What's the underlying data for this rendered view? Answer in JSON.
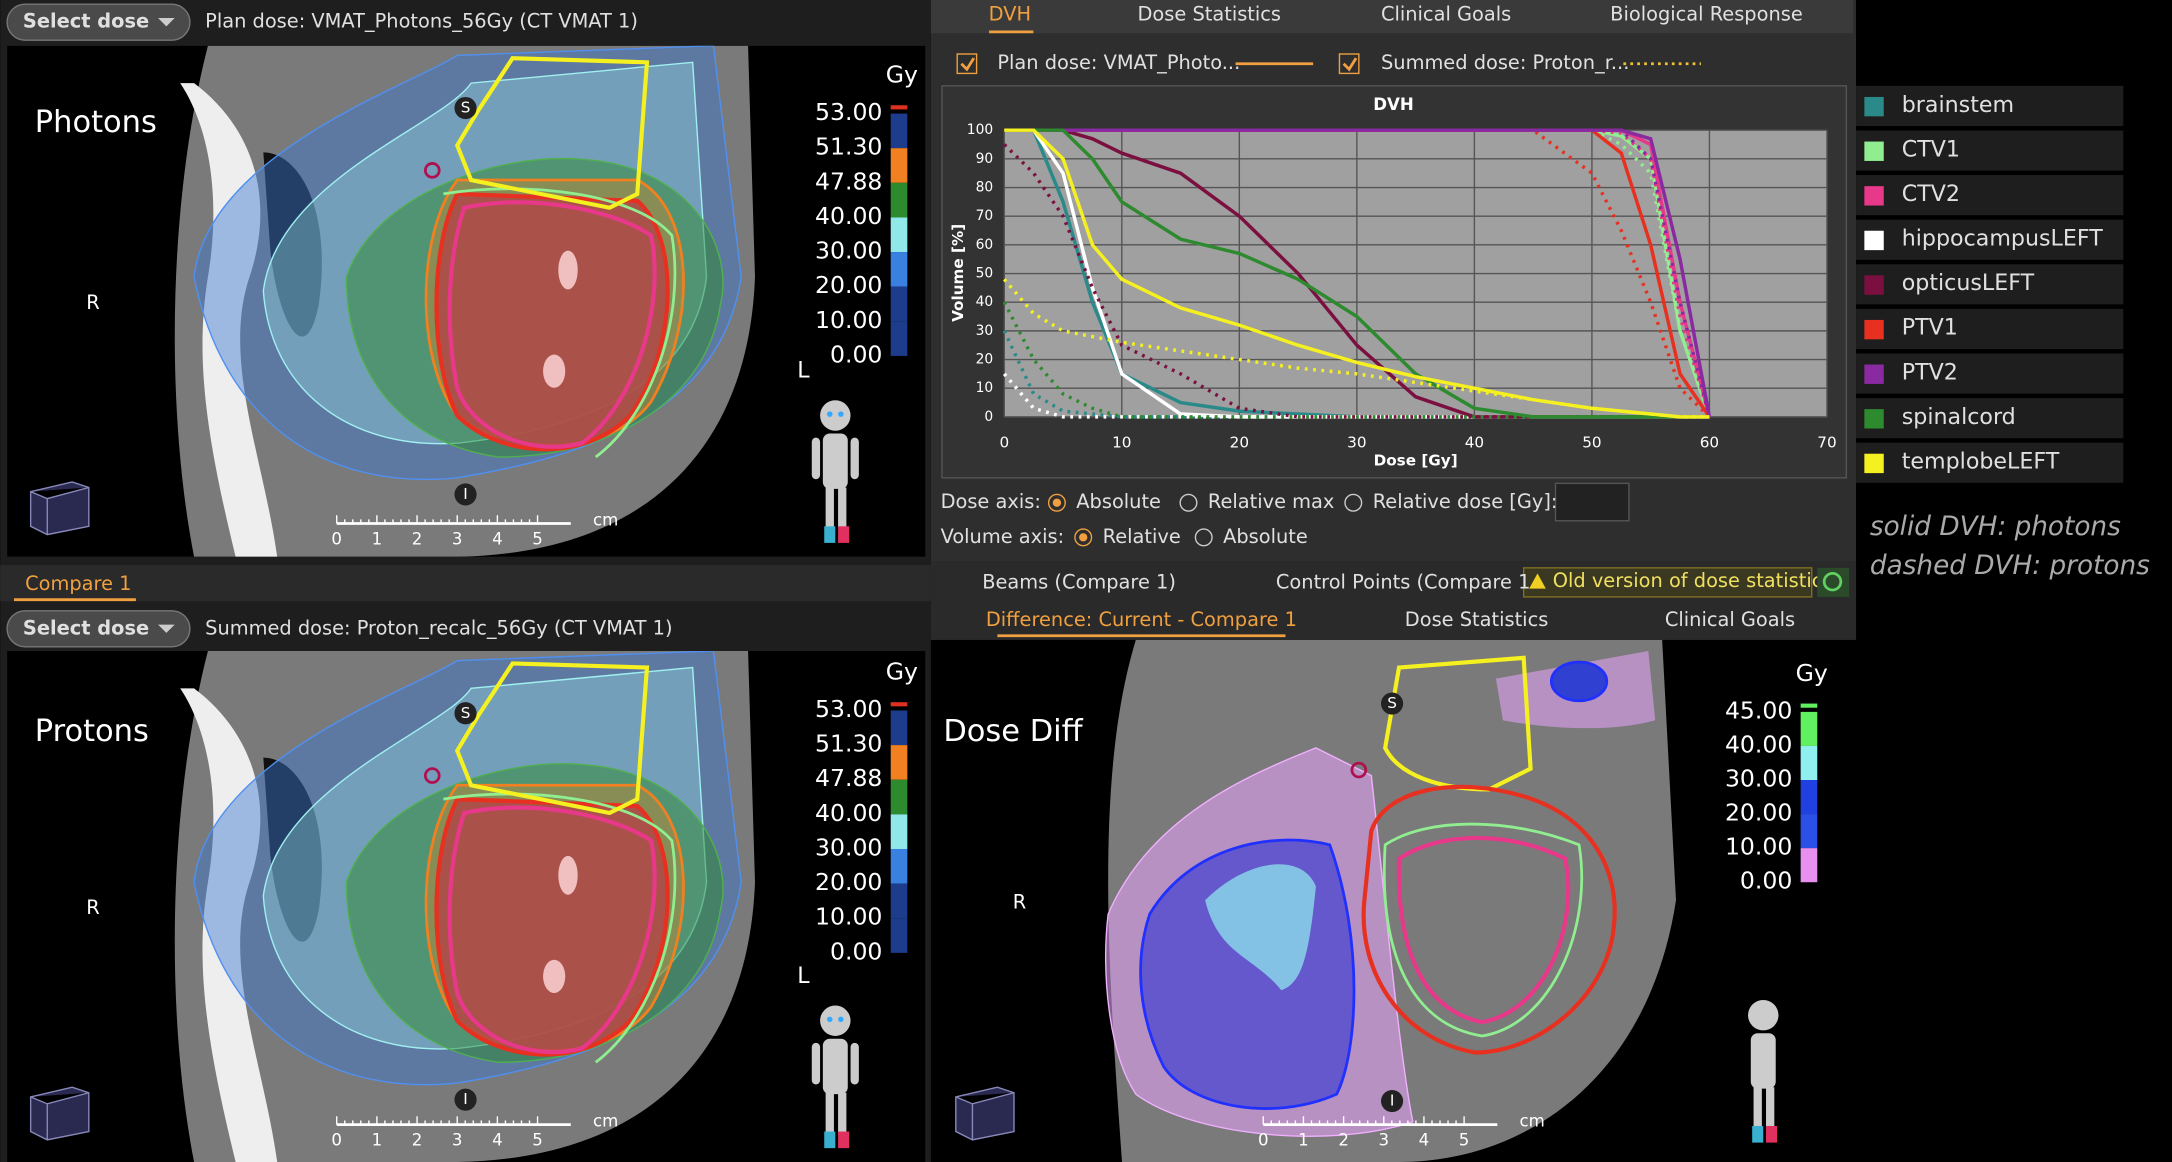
{
  "top_panel": {
    "select_button": "Select dose",
    "dose_label": "Plan dose: VMAT_Photons_56Gy (CT VMAT 1)",
    "overlay": "Photons"
  },
  "compare_tab": "Compare 1",
  "bottom_panel": {
    "select_button": "Select dose",
    "dose_label": "Summed dose: Proton_recalc_56Gy (CT VMAT 1)",
    "overlay": "Protons"
  },
  "orientation": {
    "superior": "S",
    "inferior": "I",
    "right": "R",
    "left": "L"
  },
  "scale": {
    "unit": "cm",
    "ticks": [
      "0",
      "1",
      "2",
      "3",
      "4",
      "5"
    ]
  },
  "dose_legend": {
    "unit": "Gy",
    "labels": [
      "53.00",
      "51.30",
      "47.88",
      "40.00",
      "30.00",
      "20.00",
      "10.00",
      "0.00"
    ],
    "colors": [
      "#1e3c8c",
      "#f08020",
      "#2e8a2e",
      "#90e8e8",
      "#3a80e0",
      "#1e3c8c",
      "#1e3c8c"
    ]
  },
  "diff_legend": {
    "unit": "Gy",
    "labels": [
      "45.00",
      "40.00",
      "30.00",
      "20.00",
      "10.00",
      "0.00"
    ],
    "colors": [
      "#60f060",
      "#90f0f0",
      "#2040e0",
      "#2a50e8",
      "#e890f0"
    ]
  },
  "dvh_tabs": [
    "DVH",
    "Dose Statistics",
    "Clinical Goals",
    "Biological Response"
  ],
  "dvh_plan_check": "Plan dose: VMAT_Photo...",
  "dvh_sum_check": "Summed dose: Proton_r...",
  "chart_data": {
    "type": "line",
    "title": "DVH",
    "x_label": "Dose [Gy]",
    "y_label": "Volume [%]",
    "x": [
      0,
      2.5,
      5,
      7.5,
      10,
      15,
      20,
      25,
      30,
      35,
      40,
      45,
      50,
      52.5,
      55,
      57.5,
      60
    ],
    "xlim": [
      0,
      70
    ],
    "xticks": [
      0,
      10,
      20,
      30,
      40,
      50,
      60,
      70
    ],
    "ylim": [
      0,
      100
    ],
    "yticks": [
      0,
      10,
      20,
      30,
      40,
      50,
      60,
      70,
      80,
      90,
      100
    ],
    "grid": true,
    "series": [
      {
        "name": "brainstem",
        "color": "#2a8a8a",
        "values": [
          100,
          100,
          75,
          40,
          15,
          5,
          2,
          1,
          0,
          0,
          0,
          0,
          0,
          0,
          0,
          0,
          0
        ],
        "dashed_values": [
          30,
          8,
          2,
          1,
          0,
          0,
          0,
          0,
          0,
          0,
          0,
          0,
          0,
          0,
          0,
          0,
          0
        ]
      },
      {
        "name": "CTV1",
        "color": "#90ee90",
        "values": [
          100,
          100,
          100,
          100,
          100,
          100,
          100,
          100,
          100,
          100,
          100,
          100,
          100,
          98,
          90,
          30,
          0
        ],
        "dashed_values": [
          100,
          100,
          100,
          100,
          100,
          100,
          100,
          100,
          100,
          100,
          100,
          100,
          100,
          95,
          85,
          30,
          0
        ]
      },
      {
        "name": "CTV2",
        "color": "#e8388a",
        "values": [
          100,
          100,
          100,
          100,
          100,
          100,
          100,
          100,
          100,
          100,
          100,
          100,
          100,
          100,
          95,
          40,
          0
        ],
        "dashed_values": [
          100,
          100,
          100,
          100,
          100,
          100,
          100,
          100,
          100,
          100,
          100,
          100,
          100,
          99,
          90,
          35,
          0
        ]
      },
      {
        "name": "hippocampusLEFT",
        "color": "#ffffff",
        "values": [
          100,
          100,
          85,
          45,
          15,
          1,
          0,
          0,
          0,
          0,
          0,
          0,
          0,
          0,
          0,
          0,
          0
        ],
        "dashed_values": [
          15,
          3,
          0,
          0,
          0,
          0,
          0,
          0,
          0,
          0,
          0,
          0,
          0,
          0,
          0,
          0,
          0
        ]
      },
      {
        "name": "opticusLEFT",
        "color": "#7b1040",
        "values": [
          100,
          100,
          100,
          97,
          92,
          85,
          70,
          50,
          25,
          7,
          0,
          0,
          0,
          0,
          0,
          0,
          0
        ],
        "dashed_values": [
          95,
          85,
          70,
          45,
          25,
          15,
          3,
          0,
          0,
          0,
          0,
          0,
          0,
          0,
          0,
          0,
          0
        ]
      },
      {
        "name": "PTV1",
        "color": "#e83020",
        "values": [
          100,
          100,
          100,
          100,
          100,
          100,
          100,
          100,
          100,
          100,
          100,
          100,
          100,
          92,
          60,
          15,
          0
        ],
        "dashed_values": [
          100,
          100,
          100,
          100,
          100,
          100,
          100,
          100,
          100,
          100,
          100,
          100,
          85,
          65,
          40,
          10,
          0
        ]
      },
      {
        "name": "PTV2",
        "color": "#8a2aa0",
        "values": [
          100,
          100,
          100,
          100,
          100,
          100,
          100,
          100,
          100,
          100,
          100,
          100,
          100,
          100,
          97,
          55,
          0
        ],
        "dashed_values": [
          100,
          100,
          100,
          100,
          100,
          100,
          100,
          100,
          100,
          100,
          100,
          100,
          100,
          100,
          90,
          40,
          0
        ]
      },
      {
        "name": "spinalcord",
        "color": "#2e8a2e",
        "values": [
          100,
          100,
          100,
          90,
          75,
          62,
          57,
          48,
          35,
          15,
          3,
          0,
          0,
          0,
          0,
          0,
          0
        ],
        "dashed_values": [
          40,
          20,
          8,
          3,
          0,
          0,
          0,
          0,
          0,
          0,
          0,
          0,
          0,
          0,
          0,
          0,
          0
        ]
      },
      {
        "name": "templobeLEFT",
        "color": "#f5f020",
        "values": [
          100,
          100,
          90,
          60,
          48,
          38,
          32,
          25,
          19,
          14,
          10,
          6,
          3,
          2,
          1,
          0,
          0
        ],
        "dashed_values": [
          48,
          36,
          30,
          28,
          26,
          23,
          20,
          17,
          15,
          12,
          9,
          6,
          3,
          2,
          1,
          0,
          0
        ]
      }
    ]
  },
  "dose_axis": {
    "label": "Dose axis:",
    "options": [
      "Absolute",
      "Relative max",
      "Relative dose [Gy]:"
    ]
  },
  "volume_axis": {
    "label": "Volume axis:",
    "options": [
      "Relative",
      "Absolute"
    ]
  },
  "lower_tabs": [
    "Beams (Compare 1)",
    "Control Points (Compare 1"
  ],
  "warning": "Old version of dose statistics",
  "diff_tabs": [
    "Difference: Current - Compare 1",
    "Dose Statistics",
    "Clinical Goals"
  ],
  "diff_overlay": "Dose Diff",
  "note": [
    "solid DVH: photons",
    "dashed DVH: protons"
  ]
}
